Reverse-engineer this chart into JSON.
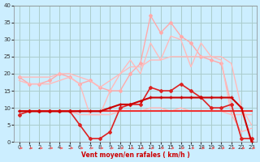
{
  "xlabel": "Vent moyen/en rafales ( km/h )",
  "background_color": "#cceeff",
  "grid_color": "#aacccc",
  "xlim": [
    -0.5,
    23.5
  ],
  "ylim": [
    0,
    40
  ],
  "yticks": [
    0,
    5,
    10,
    15,
    20,
    25,
    30,
    35,
    40
  ],
  "xticks": [
    0,
    1,
    2,
    3,
    4,
    5,
    6,
    7,
    8,
    9,
    10,
    11,
    12,
    13,
    14,
    15,
    16,
    17,
    18,
    19,
    20,
    21,
    22,
    23
  ],
  "series": [
    {
      "name": "rafales_light1",
      "x": [
        0,
        1,
        2,
        3,
        4,
        5,
        6,
        7,
        8,
        9,
        10,
        11,
        12,
        13,
        14,
        15,
        16,
        17,
        18,
        19,
        20,
        21,
        22,
        23
      ],
      "y": [
        19,
        17,
        17,
        18,
        20,
        19,
        17,
        18,
        16,
        15,
        15,
        20,
        23,
        37,
        32,
        35,
        31,
        29,
        25,
        24,
        23,
        11,
        1,
        1
      ],
      "color": "#ffaaaa",
      "lw": 1.0,
      "marker": "D",
      "ms": 2.0,
      "zorder": 2
    },
    {
      "name": "rafales_light2",
      "x": [
        0,
        1,
        2,
        3,
        4,
        5,
        6,
        7,
        8,
        9,
        10,
        11,
        12,
        13,
        14,
        15,
        16,
        17,
        18,
        19,
        20,
        21,
        22,
        23
      ],
      "y": [
        18,
        17,
        17,
        17,
        18,
        19,
        17,
        8,
        8,
        15,
        20,
        24,
        20,
        29,
        24,
        31,
        30,
        22,
        29,
        25,
        24,
        8,
        3,
        4
      ],
      "color": "#ffbbbb",
      "lw": 1.0,
      "marker": null,
      "ms": 0,
      "zorder": 2
    },
    {
      "name": "moy_light",
      "x": [
        0,
        1,
        2,
        3,
        4,
        5,
        6,
        7,
        8,
        9,
        10,
        11,
        12,
        13,
        14,
        15,
        16,
        17,
        18,
        19,
        20,
        21,
        22,
        23
      ],
      "y": [
        19,
        19,
        19,
        19,
        20,
        20,
        19,
        18,
        16,
        18,
        20,
        22,
        22,
        24,
        24,
        25,
        25,
        25,
        25,
        25,
        25,
        23,
        10,
        5
      ],
      "color": "#ffbbbb",
      "lw": 1.0,
      "marker": null,
      "ms": 0,
      "zorder": 2
    },
    {
      "name": "moy_medium",
      "x": [
        0,
        1,
        2,
        3,
        4,
        5,
        6,
        7,
        8,
        9,
        10,
        11,
        12,
        13,
        14,
        15,
        16,
        17,
        18,
        19,
        20,
        21,
        22,
        23
      ],
      "y": [
        9,
        9,
        9,
        9,
        9,
        9,
        8,
        8,
        8,
        8,
        9,
        9,
        9,
        10,
        10,
        9,
        10,
        9,
        9,
        9,
        9,
        8,
        8,
        8
      ],
      "color": "#ffbbbb",
      "lw": 1.0,
      "marker": null,
      "ms": 0,
      "zorder": 3
    },
    {
      "name": "rafales_dark",
      "x": [
        0,
        1,
        2,
        3,
        4,
        5,
        6,
        7,
        8,
        9,
        10,
        11,
        12,
        13,
        14,
        15,
        16,
        17,
        18,
        19,
        20,
        21,
        22,
        23
      ],
      "y": [
        8,
        9,
        9,
        9,
        9,
        9,
        5,
        1,
        1,
        3,
        10,
        11,
        11,
        16,
        15,
        15,
        17,
        15,
        13,
        10,
        10,
        11,
        1,
        1
      ],
      "color": "#dd2222",
      "lw": 1.2,
      "marker": "D",
      "ms": 2.0,
      "zorder": 5
    },
    {
      "name": "moy_dark",
      "x": [
        0,
        1,
        2,
        3,
        4,
        5,
        6,
        7,
        8,
        9,
        10,
        11,
        12,
        13,
        14,
        15,
        16,
        17,
        18,
        19,
        20,
        21,
        22,
        23
      ],
      "y": [
        9,
        9,
        9,
        9,
        9,
        9,
        9,
        9,
        9,
        10,
        11,
        11,
        12,
        13,
        13,
        13,
        13,
        13,
        13,
        13,
        13,
        13,
        10,
        0
      ],
      "color": "#cc0000",
      "lw": 1.5,
      "marker": "+",
      "ms": 3.0,
      "zorder": 5
    },
    {
      "name": "flat_red",
      "x": [
        0,
        1,
        2,
        3,
        4,
        5,
        6,
        7,
        8,
        9,
        10,
        11,
        12,
        13,
        14,
        15,
        16,
        17,
        18,
        19,
        20,
        21,
        22,
        23
      ],
      "y": [
        9,
        9,
        9,
        9,
        9,
        9,
        9,
        9,
        9,
        9,
        9,
        9,
        9,
        9,
        9,
        9,
        9,
        9,
        9,
        9,
        9,
        9,
        9,
        9
      ],
      "color": "#ee3333",
      "lw": 1.5,
      "marker": null,
      "ms": 0,
      "zorder": 4
    }
  ],
  "arrows": {
    "color": "#ff6666",
    "y_data": -1.8,
    "angles": [
      0,
      0,
      0,
      0,
      45,
      0,
      0,
      0,
      0,
      0,
      0,
      45,
      45,
      0,
      0,
      0,
      0,
      0,
      0,
      0,
      0,
      0,
      315,
      0
    ]
  }
}
